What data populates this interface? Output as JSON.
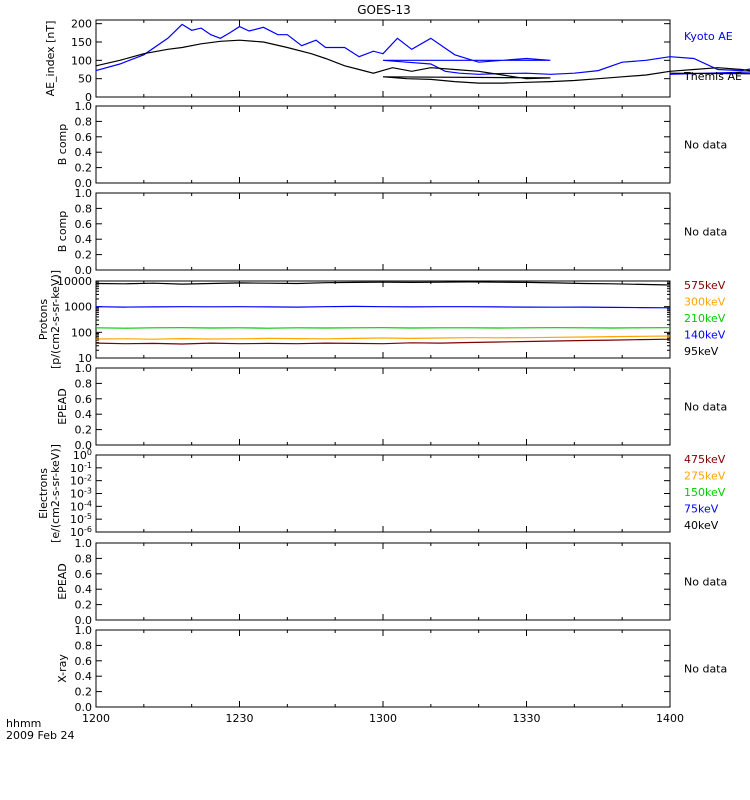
{
  "title": "GOES-13",
  "footer": {
    "line1": "hhmm",
    "line2": "2009 Feb 24"
  },
  "chart_data": [
    {
      "type": "line",
      "ylabel": "AE_index [nT]",
      "x_range": [
        1200,
        1400
      ],
      "ylim": [
        0,
        210
      ],
      "yticks": [
        0,
        50,
        100,
        150,
        200
      ],
      "series": [
        {
          "name": "Kyoto AE",
          "color": "#0000ff",
          "x": [
            1200,
            1205,
            1210,
            1215,
            1218,
            1220,
            1222,
            1224,
            1226,
            1228,
            1230,
            1232,
            1235,
            1238,
            1240,
            1243,
            1246,
            1248,
            1252,
            1255,
            1258,
            1260,
            1263,
            1266,
            1270,
            1275,
            1280,
            1285,
            1290,
            1295,
            1300,
            1305,
            1310,
            1313,
            1316,
            1320,
            1325,
            1330,
            1335,
            1340,
            1345,
            1350,
            1355,
            1360,
            1365,
            1370,
            1375,
            1380,
            1385,
            1390,
            1395,
            1400
          ],
          "y": [
            72,
            90,
            115,
            160,
            198,
            182,
            188,
            170,
            160,
            175,
            192,
            180,
            190,
            170,
            170,
            140,
            155,
            135,
            135,
            110,
            125,
            118,
            160,
            130,
            160,
            115,
            95,
            100,
            105,
            100,
            100,
            95,
            90,
            70,
            65,
            62,
            64,
            65,
            62,
            65,
            72,
            95,
            100,
            110,
            105,
            75,
            72,
            85,
            75,
            80,
            75,
            62
          ]
        },
        {
          "name": "Themis AE",
          "color": "#000000",
          "x": [
            1200,
            1205,
            1210,
            1215,
            1218,
            1222,
            1226,
            1230,
            1235,
            1240,
            1245,
            1248,
            1252,
            1255,
            1258,
            1262,
            1266,
            1270,
            1275,
            1280,
            1285,
            1290,
            1295,
            1300,
            1305,
            1310,
            1315,
            1320,
            1325,
            1330,
            1335,
            1340,
            1345,
            1350,
            1355,
            1360,
            1365,
            1370,
            1375,
            1380,
            1385,
            1390,
            1395,
            1400
          ],
          "y": [
            85,
            100,
            118,
            130,
            135,
            145,
            152,
            155,
            150,
            135,
            118,
            105,
            85,
            75,
            65,
            80,
            70,
            80,
            75,
            70,
            60,
            50,
            52,
            55,
            50,
            48,
            42,
            38,
            38,
            40,
            42,
            45,
            50,
            55,
            60,
            70,
            75,
            80,
            75,
            65,
            60,
            60,
            62,
            65
          ]
        }
      ]
    },
    {
      "type": "line",
      "ylabel": "B comp",
      "x_range": [
        1200,
        1400
      ],
      "ylim": [
        0,
        1
      ],
      "yticks": [
        0.0,
        0.2,
        0.4,
        0.6,
        0.8,
        1.0
      ],
      "no_data_text": "No data"
    },
    {
      "type": "line",
      "ylabel": "B comp",
      "x_range": [
        1200,
        1400
      ],
      "ylim": [
        0,
        1
      ],
      "yticks": [
        0.0,
        0.2,
        0.4,
        0.6,
        0.8,
        1.0
      ],
      "no_data_text": "No data"
    },
    {
      "type": "line",
      "ylabel": "Protons",
      "ylabel_units": "[p/(cm2-s-sr-keV)]",
      "x_range": [
        1200,
        1400
      ],
      "log_y": true,
      "ylim": [
        10,
        10000
      ],
      "yticks": [
        10,
        100,
        1000,
        10000
      ],
      "series": [
        {
          "name": "575keV",
          "color": "#7f0000",
          "values": [
            38,
            36,
            37,
            35,
            38,
            36,
            37,
            36,
            38,
            37,
            36,
            39,
            38,
            40,
            42,
            44,
            46,
            48,
            50,
            52,
            54
          ]
        },
        {
          "name": "300keV",
          "color": "#ffa500",
          "values": [
            55,
            56,
            54,
            57,
            55,
            56,
            58,
            57,
            56,
            58,
            60,
            58,
            60,
            62,
            61,
            62,
            64,
            66,
            68,
            70,
            72
          ]
        },
        {
          "name": "210keV",
          "color": "#00cc00",
          "values": [
            150,
            145,
            150,
            152,
            148,
            150,
            145,
            150,
            148,
            150,
            152,
            148,
            150,
            150,
            148,
            150,
            152,
            150,
            148,
            150,
            152
          ]
        },
        {
          "name": "140keV",
          "color": "#0000ff",
          "values": [
            1000,
            960,
            980,
            1000,
            990,
            1000,
            980,
            960,
            1000,
            1020,
            1000,
            980,
            1000,
            1000,
            980,
            960,
            950,
            960,
            940,
            920,
            900
          ]
        },
        {
          "name": "95keV",
          "color": "#000000",
          "values": [
            8000,
            7800,
            8200,
            7600,
            8000,
            8400,
            8200,
            8000,
            8600,
            8800,
            9000,
            8800,
            9000,
            9200,
            9000,
            8800,
            8400,
            8000,
            7800,
            7400,
            7000
          ]
        }
      ]
    },
    {
      "type": "line",
      "ylabel": "EPEAD",
      "x_range": [
        1200,
        1400
      ],
      "ylim": [
        0,
        1
      ],
      "yticks": [
        0.0,
        0.2,
        0.4,
        0.6,
        0.8,
        1.0
      ],
      "no_data_text": "No data"
    },
    {
      "type": "line",
      "ylabel": "Electrons",
      "ylabel_units": "[e/(cm2-s-sr-keV)]",
      "x_range": [
        1200,
        1400
      ],
      "log_y": true,
      "ylim": [
        1e-06,
        1
      ],
      "yticks": [
        "10^-6",
        "10^-5",
        "10^-4",
        "10^-3",
        "10^-2",
        "10^-1",
        "10^0"
      ],
      "series": [
        {
          "name": "475keV",
          "color": "#7f0000"
        },
        {
          "name": "275keV",
          "color": "#ffa500"
        },
        {
          "name": "150keV",
          "color": "#00cc00"
        },
        {
          "name": "75keV",
          "color": "#0000ff"
        },
        {
          "name": "40keV",
          "color": "#000000"
        }
      ]
    },
    {
      "type": "line",
      "ylabel": "EPEAD",
      "x_range": [
        1200,
        1400
      ],
      "ylim": [
        0,
        1
      ],
      "yticks": [
        0.0,
        0.2,
        0.4,
        0.6,
        0.8,
        1.0
      ],
      "no_data_text": "No data"
    },
    {
      "type": "line",
      "ylabel": "X-ray",
      "x_range": [
        1200,
        1400
      ],
      "ylim": [
        0,
        1
      ],
      "yticks": [
        0.0,
        0.2,
        0.4,
        0.6,
        0.8,
        1.0
      ],
      "no_data_text": "No data",
      "xticks": [
        "1200",
        "1230",
        "1300",
        "1330",
        "1400"
      ]
    }
  ]
}
